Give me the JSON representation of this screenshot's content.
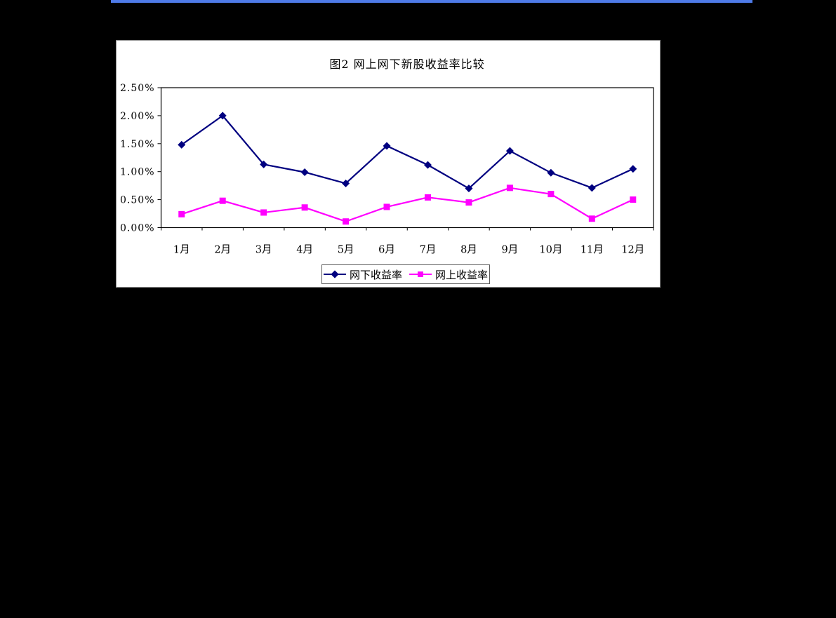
{
  "page": {
    "background_color": "#000000",
    "accent_bar_color": "#4f7be8"
  },
  "chart_data": {
    "type": "line",
    "title": "图2 网上网下新股收益率比较",
    "categories": [
      "1月",
      "2月",
      "3月",
      "4月",
      "5月",
      "6月",
      "7月",
      "8月",
      "9月",
      "10月",
      "11月",
      "12月"
    ],
    "series": [
      {
        "name": "网下收益率",
        "color": "#000080",
        "marker": "diamond",
        "values": [
          1.48,
          2.0,
          1.13,
          0.99,
          0.79,
          1.46,
          1.12,
          0.7,
          1.37,
          0.98,
          0.71,
          1.05
        ]
      },
      {
        "name": "网上收益率",
        "color": "#ff00ff",
        "marker": "square",
        "values": [
          0.24,
          0.48,
          0.27,
          0.36,
          0.11,
          0.37,
          0.54,
          0.45,
          0.71,
          0.6,
          0.16,
          0.5
        ]
      }
    ],
    "ylim": [
      0,
      2.5
    ],
    "ytick_step": 0.5,
    "ytick_labels": [
      "0.00%",
      "0.50%",
      "1.00%",
      "1.50%",
      "2.00%",
      "2.50%"
    ],
    "ylabel": "",
    "xlabel": "",
    "grid": false,
    "legend_position": "bottom"
  }
}
